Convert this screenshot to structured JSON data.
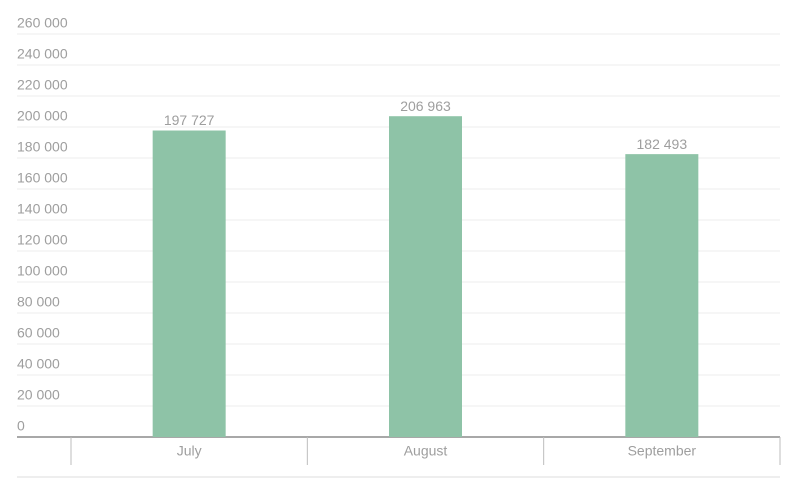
{
  "chart_data": {
    "type": "bar",
    "categories": [
      "July",
      "August",
      "September"
    ],
    "values": [
      197727,
      206963,
      182493
    ],
    "value_labels": [
      "197 727",
      "206 963",
      "182 493"
    ],
    "color": "#8ec3a7",
    "ylim": [
      0,
      260000
    ],
    "yticks": [
      0,
      {
        "value": 20000,
        "label": "20 000"
      },
      {
        "value": 40000,
        "label": "40 000"
      },
      {
        "value": 60000,
        "label": "60 000"
      },
      {
        "value": 80000,
        "label": "80 000"
      },
      {
        "value": 100000,
        "label": "100 000"
      },
      {
        "value": 120000,
        "label": "120 000"
      },
      {
        "value": 140000,
        "label": "140 000"
      },
      {
        "value": 160000,
        "label": "160 000"
      },
      {
        "value": 180000,
        "label": "180 000"
      },
      {
        "value": 200000,
        "label": "200 000"
      },
      {
        "value": 220000,
        "label": "220 000"
      },
      {
        "value": 240000,
        "label": "240 000"
      },
      {
        "value": 260000,
        "label": "260 000"
      }
    ],
    "grid": true
  }
}
